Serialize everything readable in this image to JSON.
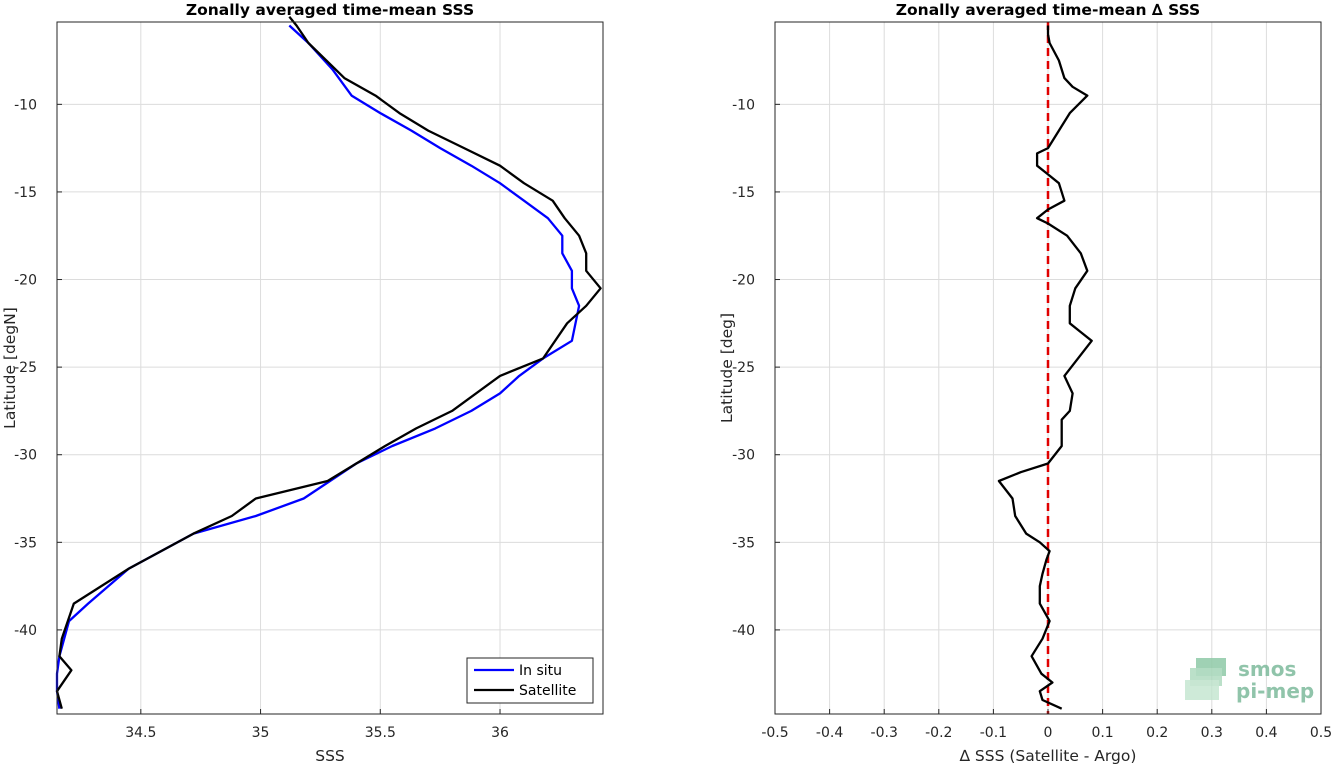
{
  "chart_data": [
    {
      "type": "line",
      "title": "Zonally averaged time-mean SSS",
      "xlabel": "SSS",
      "ylabel": "Latitude [degN]",
      "xlim": [
        34.15,
        36.43
      ],
      "ylim": [
        -44.8,
        -5.3
      ],
      "xticks": [
        34.5,
        35,
        35.5,
        36
      ],
      "yticks": [
        -10,
        -15,
        -20,
        -25,
        -30,
        -35,
        -40
      ],
      "grid": true,
      "legend_position": "bottom-right",
      "series": [
        {
          "name": "In situ",
          "color": "#0000ff",
          "x": [
            35.12,
            35.2,
            35.3,
            35.38,
            35.5,
            35.63,
            35.75,
            35.88,
            36.0,
            36.1,
            36.2,
            36.26,
            36.26,
            36.3,
            36.3,
            36.33,
            36.3,
            36.18,
            36.08,
            36.0,
            35.88,
            35.73,
            35.55,
            35.4,
            35.18,
            34.98,
            34.72,
            34.45,
            34.28,
            34.2,
            34.16,
            34.15,
            34.15,
            34.16
          ],
          "y": [
            -5.5,
            -6.5,
            -8,
            -9.5,
            -10.5,
            -11.5,
            -12.5,
            -13.5,
            -14.5,
            -15.5,
            -16.5,
            -17.5,
            -18.5,
            -19.5,
            -20.5,
            -21.5,
            -23.5,
            -24.5,
            -25.5,
            -26.5,
            -27.5,
            -28.5,
            -29.5,
            -30.5,
            -32.5,
            -33.5,
            -34.5,
            -36.5,
            -38.5,
            -39.5,
            -41.5,
            -42.5,
            -43.5,
            -44.5
          ]
        },
        {
          "name": "Satellite",
          "color": "#000000",
          "x": [
            35.12,
            35.15,
            35.2,
            35.35,
            35.48,
            35.58,
            35.7,
            35.85,
            36.0,
            36.1,
            36.22,
            36.27,
            36.33,
            36.36,
            36.36,
            36.42,
            36.36,
            36.28,
            36.18,
            36.0,
            35.8,
            35.65,
            35.52,
            35.28,
            34.98,
            34.88,
            34.72,
            34.45,
            34.22,
            34.17,
            34.16,
            34.21,
            34.15,
            34.17
          ],
          "y": [
            -5.0,
            -5.5,
            -6.5,
            -8.5,
            -9.5,
            -10.5,
            -11.5,
            -12.5,
            -13.5,
            -14.5,
            -15.5,
            -16.5,
            -17.5,
            -18.5,
            -19.5,
            -20.5,
            -21.5,
            -22.5,
            -24.5,
            -25.5,
            -27.5,
            -28.5,
            -29.5,
            -31.5,
            -32.5,
            -33.5,
            -34.5,
            -36.5,
            -38.5,
            -40.5,
            -41.5,
            -42.3,
            -43.5,
            -44.5
          ]
        }
      ]
    },
    {
      "type": "line",
      "title": "Zonally averaged time-mean ∆ SSS",
      "xlabel": "∆ SSS (Satellite - Argo)",
      "ylabel": "Latitude [deg]",
      "xlim": [
        -0.5,
        0.5
      ],
      "ylim": [
        -44.8,
        -5.3
      ],
      "xticks": [
        -0.5,
        -0.4,
        -0.3,
        -0.2,
        -0.1,
        0,
        0.1,
        0.2,
        0.3,
        0.4,
        0.5
      ],
      "xticklabels": [
        "-0.5",
        "-0.4",
        "-0.3",
        "-0.2",
        "-0.1",
        "0",
        "0.1",
        "0.2",
        "0.3",
        "0.4",
        "0.5"
      ],
      "yticks": [
        -10,
        -15,
        -20,
        -25,
        -30,
        -35,
        -40
      ],
      "grid": true,
      "zero_line": {
        "x": 0,
        "color": "#e00000",
        "style": "dashed"
      },
      "series": [
        {
          "color": "#000000",
          "x": [
            0.0,
            0.0,
            0.003,
            0.02,
            0.03,
            0.045,
            0.072,
            0.04,
            0.02,
            0.0,
            -0.02,
            -0.02,
            0.0,
            0.02,
            0.03,
            0.0,
            -0.02,
            0.0,
            0.035,
            0.06,
            0.072,
            0.05,
            0.04,
            0.04,
            0.06,
            0.08,
            0.055,
            0.03,
            0.045,
            0.04,
            0.025,
            0.025,
            0.025,
            0.0,
            -0.05,
            -0.09,
            -0.065,
            -0.06,
            -0.04,
            -0.015,
            0.003,
            -0.003,
            -0.01,
            -0.015,
            -0.015,
            0.003,
            -0.01,
            -0.03,
            -0.012,
            0.008,
            -0.015,
            -0.01,
            0.025
          ],
          "y": [
            -5.5,
            -6,
            -6.5,
            -7.5,
            -8.5,
            -9.0,
            -9.5,
            -10.5,
            -11.5,
            -12.5,
            -12.8,
            -13.5,
            -14,
            -14.5,
            -15.5,
            -16.0,
            -16.5,
            -16.8,
            -17.5,
            -18.5,
            -19.5,
            -20.5,
            -21.5,
            -22.5,
            -23.0,
            -23.5,
            -24.5,
            -25.5,
            -26.5,
            -27.5,
            -28.0,
            -28.5,
            -29.5,
            -30.5,
            -31.0,
            -31.5,
            -32.5,
            -33.5,
            -34.5,
            -35.0,
            -35.5,
            -36.0,
            -36.8,
            -37.5,
            -38.5,
            -39.5,
            -40.5,
            -41.5,
            -42.5,
            -43.0,
            -43.5,
            -44.0,
            -44.5
          ]
        }
      ]
    }
  ],
  "legend_labels": [
    "In situ",
    "Satellite"
  ],
  "logo": {
    "line1": "smos",
    "line2": "pi-mep",
    "color": "#7dba9c"
  }
}
